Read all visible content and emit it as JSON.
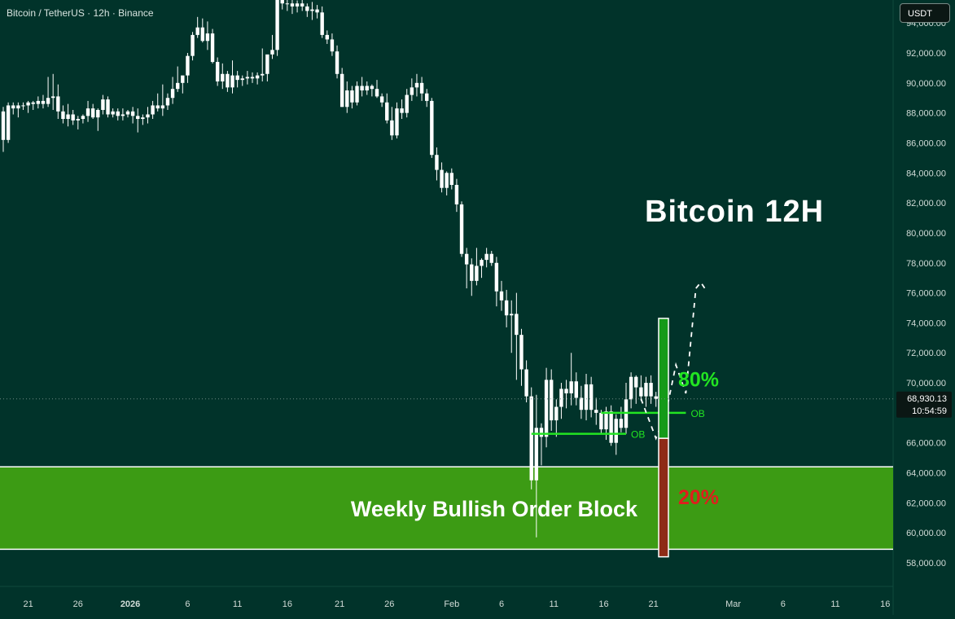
{
  "header": {
    "symbol": "Bitcoin / TetherUS · 12h · Binance",
    "currency": "USDT"
  },
  "price_marker": {
    "price": "68,930.13",
    "countdown": "10:54:59"
  },
  "colors": {
    "background": "#01332a",
    "candle": "#ffffff",
    "order_block_zone": "#3c9b14",
    "ob_line": "#22e522",
    "bar_green": "#159a19",
    "bar_red": "#8e2b17",
    "label_green": "#22e522",
    "label_red": "#e01d1d"
  },
  "chart_data": {
    "type": "candlestick",
    "title": "Bitcoin 12H",
    "ylim": [
      57000,
      96000
    ],
    "y_ticks": [
      "58,000.00",
      "60,000.00",
      "62,000.00",
      "64,000.00",
      "66,000.00",
      "68,000.00",
      "70,000.00",
      "72,000.00",
      "74,000.00",
      "76,000.00",
      "78,000.00",
      "80,000.00",
      "82,000.00",
      "84,000.00",
      "86,000.00",
      "88,000.00",
      "90,000.00",
      "92,000.00",
      "94,000.00"
    ],
    "x_ticks": [
      "21",
      "26",
      "2026",
      "6",
      "11",
      "16",
      "21",
      "26",
      "Feb",
      "6",
      "11",
      "16",
      "21",
      "Mar",
      "6",
      "11",
      "16"
    ],
    "candles": [
      [
        88100,
        88400,
        85400,
        86200
      ],
      [
        86200,
        88700,
        86000,
        88500
      ],
      [
        88500,
        88700,
        87900,
        88300
      ],
      [
        88300,
        88700,
        87700,
        88500
      ],
      [
        88500,
        88700,
        88200,
        88500
      ],
      [
        88500,
        88800,
        88000,
        88700
      ],
      [
        88700,
        88800,
        88200,
        88600
      ],
      [
        88600,
        89100,
        88300,
        88800
      ],
      [
        88800,
        89200,
        88300,
        88600
      ],
      [
        88600,
        90400,
        88400,
        89000
      ],
      [
        89000,
        90600,
        88200,
        89100
      ],
      [
        89100,
        89900,
        87600,
        88100
      ],
      [
        88100,
        88500,
        87300,
        87600
      ],
      [
        87600,
        88600,
        87100,
        87900
      ],
      [
        87900,
        88200,
        87200,
        87500
      ],
      [
        87500,
        87800,
        86900,
        87600
      ],
      [
        87600,
        87900,
        87300,
        87800
      ],
      [
        87800,
        88800,
        87400,
        88300
      ],
      [
        88300,
        88600,
        87600,
        87700
      ],
      [
        87700,
        88300,
        86800,
        88200
      ],
      [
        88200,
        89200,
        87900,
        88900
      ],
      [
        88900,
        89100,
        87700,
        87900
      ],
      [
        87900,
        88300,
        87700,
        88100
      ],
      [
        88100,
        88300,
        87500,
        87800
      ],
      [
        87800,
        88300,
        87500,
        87900
      ],
      [
        87900,
        88200,
        87700,
        88100
      ],
      [
        88100,
        88400,
        87300,
        87800
      ],
      [
        87800,
        88300,
        86700,
        87600
      ],
      [
        87600,
        87900,
        87200,
        87700
      ],
      [
        87700,
        88400,
        87300,
        87900
      ],
      [
        87900,
        88800,
        87600,
        88500
      ],
      [
        88500,
        89300,
        88100,
        88300
      ],
      [
        88300,
        89900,
        87800,
        88500
      ],
      [
        88500,
        89300,
        88200,
        89000
      ],
      [
        89000,
        90400,
        88600,
        89600
      ],
      [
        89600,
        91100,
        89400,
        90000
      ],
      [
        90000,
        90400,
        89300,
        90500
      ],
      [
        90500,
        92000,
        90000,
        91800
      ],
      [
        91800,
        93400,
        91500,
        93200
      ],
      [
        93200,
        94400,
        93000,
        93700
      ],
      [
        93700,
        94300,
        92700,
        92800
      ],
      [
        92800,
        94100,
        92200,
        93300
      ],
      [
        93300,
        93600,
        91300,
        91400
      ],
      [
        91400,
        91700,
        89800,
        90100
      ],
      [
        90100,
        91300,
        89600,
        90600
      ],
      [
        90600,
        90800,
        89400,
        89700
      ],
      [
        89700,
        91500,
        89300,
        90500
      ],
      [
        90500,
        90800,
        89700,
        90200
      ],
      [
        90200,
        90500,
        89800,
        90300
      ],
      [
        90300,
        90800,
        89900,
        90400
      ],
      [
        90400,
        90700,
        90000,
        90300
      ],
      [
        90300,
        90700,
        89900,
        90500
      ],
      [
        90500,
        92300,
        90100,
        90600
      ],
      [
        90600,
        91800,
        90100,
        91900
      ],
      [
        91900,
        93200,
        91600,
        92200
      ],
      [
        92200,
        96200,
        91800,
        95700
      ],
      [
        95700,
        96300,
        94900,
        95300
      ],
      [
        95300,
        95700,
        94800,
        95300
      ],
      [
        95300,
        95600,
        94600,
        95100
      ],
      [
        95100,
        95500,
        94700,
        95300
      ],
      [
        95300,
        95800,
        94800,
        95100
      ],
      [
        95100,
        95300,
        94400,
        94800
      ],
      [
        94800,
        95400,
        94200,
        94900
      ],
      [
        94900,
        95200,
        94300,
        94700
      ],
      [
        94700,
        95100,
        93000,
        93200
      ],
      [
        93200,
        93500,
        92600,
        92900
      ],
      [
        92900,
        93300,
        91800,
        92100
      ],
      [
        92100,
        92500,
        90300,
        90600
      ],
      [
        90600,
        91000,
        88400,
        88400
      ],
      [
        88400,
        90100,
        88000,
        89500
      ],
      [
        89500,
        89800,
        88300,
        88700
      ],
      [
        88700,
        90100,
        88500,
        89800
      ],
      [
        89800,
        90400,
        89100,
        89500
      ],
      [
        89500,
        90100,
        89200,
        89800
      ],
      [
        89800,
        89900,
        89100,
        89600
      ],
      [
        89600,
        90200,
        89000,
        89100
      ],
      [
        89100,
        89300,
        88400,
        88700
      ],
      [
        88700,
        89300,
        87300,
        87500
      ],
      [
        87500,
        88400,
        86200,
        86500
      ],
      [
        86500,
        88700,
        86300,
        88300
      ],
      [
        88300,
        88900,
        87600,
        88000
      ],
      [
        88000,
        89600,
        87700,
        89200
      ],
      [
        89200,
        90300,
        88800,
        89700
      ],
      [
        89700,
        90600,
        89100,
        90000
      ],
      [
        90000,
        90400,
        88800,
        89300
      ],
      [
        89300,
        89600,
        88400,
        88800
      ],
      [
        88800,
        89000,
        85000,
        85200
      ],
      [
        85200,
        85700,
        83500,
        84200
      ],
      [
        84200,
        84700,
        82700,
        83000
      ],
      [
        83000,
        84100,
        82500,
        84000
      ],
      [
        84000,
        84300,
        82900,
        83200
      ],
      [
        83200,
        83600,
        81400,
        81900
      ],
      [
        81900,
        82100,
        78400,
        78600
      ],
      [
        78600,
        79000,
        76300,
        77900
      ],
      [
        77900,
        78300,
        75800,
        76800
      ],
      [
        76800,
        79000,
        76500,
        77800
      ],
      [
        77800,
        78300,
        77000,
        78200
      ],
      [
        78200,
        79000,
        77700,
        78600
      ],
      [
        78600,
        78800,
        77800,
        78000
      ],
      [
        78000,
        78400,
        75100,
        76100
      ],
      [
        76100,
        76800,
        74800,
        75500
      ],
      [
        75500,
        76200,
        73700,
        74500
      ],
      [
        74500,
        75500,
        72000,
        74600
      ],
      [
        74600,
        76000,
        70200,
        73200
      ],
      [
        73200,
        73600,
        69800,
        70900
      ],
      [
        70900,
        71500,
        68700,
        69100
      ],
      [
        69100,
        69700,
        62900,
        63500
      ],
      [
        63500,
        69200,
        59700,
        67000
      ],
      [
        67000,
        67300,
        64500,
        66400
      ],
      [
        66400,
        71000,
        65700,
        70200
      ],
      [
        70200,
        70900,
        66800,
        67500
      ],
      [
        67500,
        68900,
        66400,
        68400
      ],
      [
        68400,
        70000,
        67600,
        69600
      ],
      [
        69600,
        70200,
        68300,
        69300
      ],
      [
        69300,
        72000,
        68500,
        70100
      ],
      [
        70100,
        70700,
        68500,
        69000
      ],
      [
        69000,
        69800,
        67600,
        68200
      ],
      [
        68200,
        70600,
        67500,
        69900
      ],
      [
        69900,
        70400,
        67700,
        68200
      ],
      [
        68200,
        69000,
        67200,
        68000
      ],
      [
        68000,
        68200,
        66600,
        66900
      ],
      [
        66900,
        68400,
        66200,
        68100
      ],
      [
        68100,
        68500,
        65800,
        66000
      ],
      [
        66000,
        67900,
        65200,
        67600
      ],
      [
        67600,
        68400,
        66700,
        67000
      ],
      [
        67000,
        70000,
        66600,
        68900
      ],
      [
        68900,
        70700,
        68300,
        70400
      ],
      [
        70400,
        70500,
        68600,
        69700
      ],
      [
        69700,
        70500,
        68800,
        69100
      ],
      [
        69100,
        70400,
        68400,
        70000
      ],
      [
        70000,
        70500,
        68600,
        69100
      ],
      [
        69100,
        69400,
        68400,
        68930
      ]
    ],
    "annotations": [
      {
        "text": "OB",
        "level": 66600,
        "from_candle": 106,
        "to_candle": 125
      },
      {
        "text": "OB",
        "level": 68000,
        "from_candle": 120,
        "to_candle": 137
      },
      {
        "text": "Weekly Bullish Order Block",
        "zone": [
          58900,
          64400
        ]
      },
      {
        "text": "80%",
        "range": [
          66300,
          74300
        ]
      },
      {
        "text": "20%",
        "range": [
          58400,
          66300
        ]
      }
    ],
    "projection": [
      [
        68930,
        128
      ],
      [
        66300,
        131
      ],
      [
        68000,
        133
      ],
      [
        71200,
        135
      ],
      [
        69300,
        137
      ],
      [
        76300,
        139
      ],
      [
        76700,
        140
      ],
      [
        76200,
        141
      ]
    ],
    "grid": false,
    "legend": "none"
  }
}
